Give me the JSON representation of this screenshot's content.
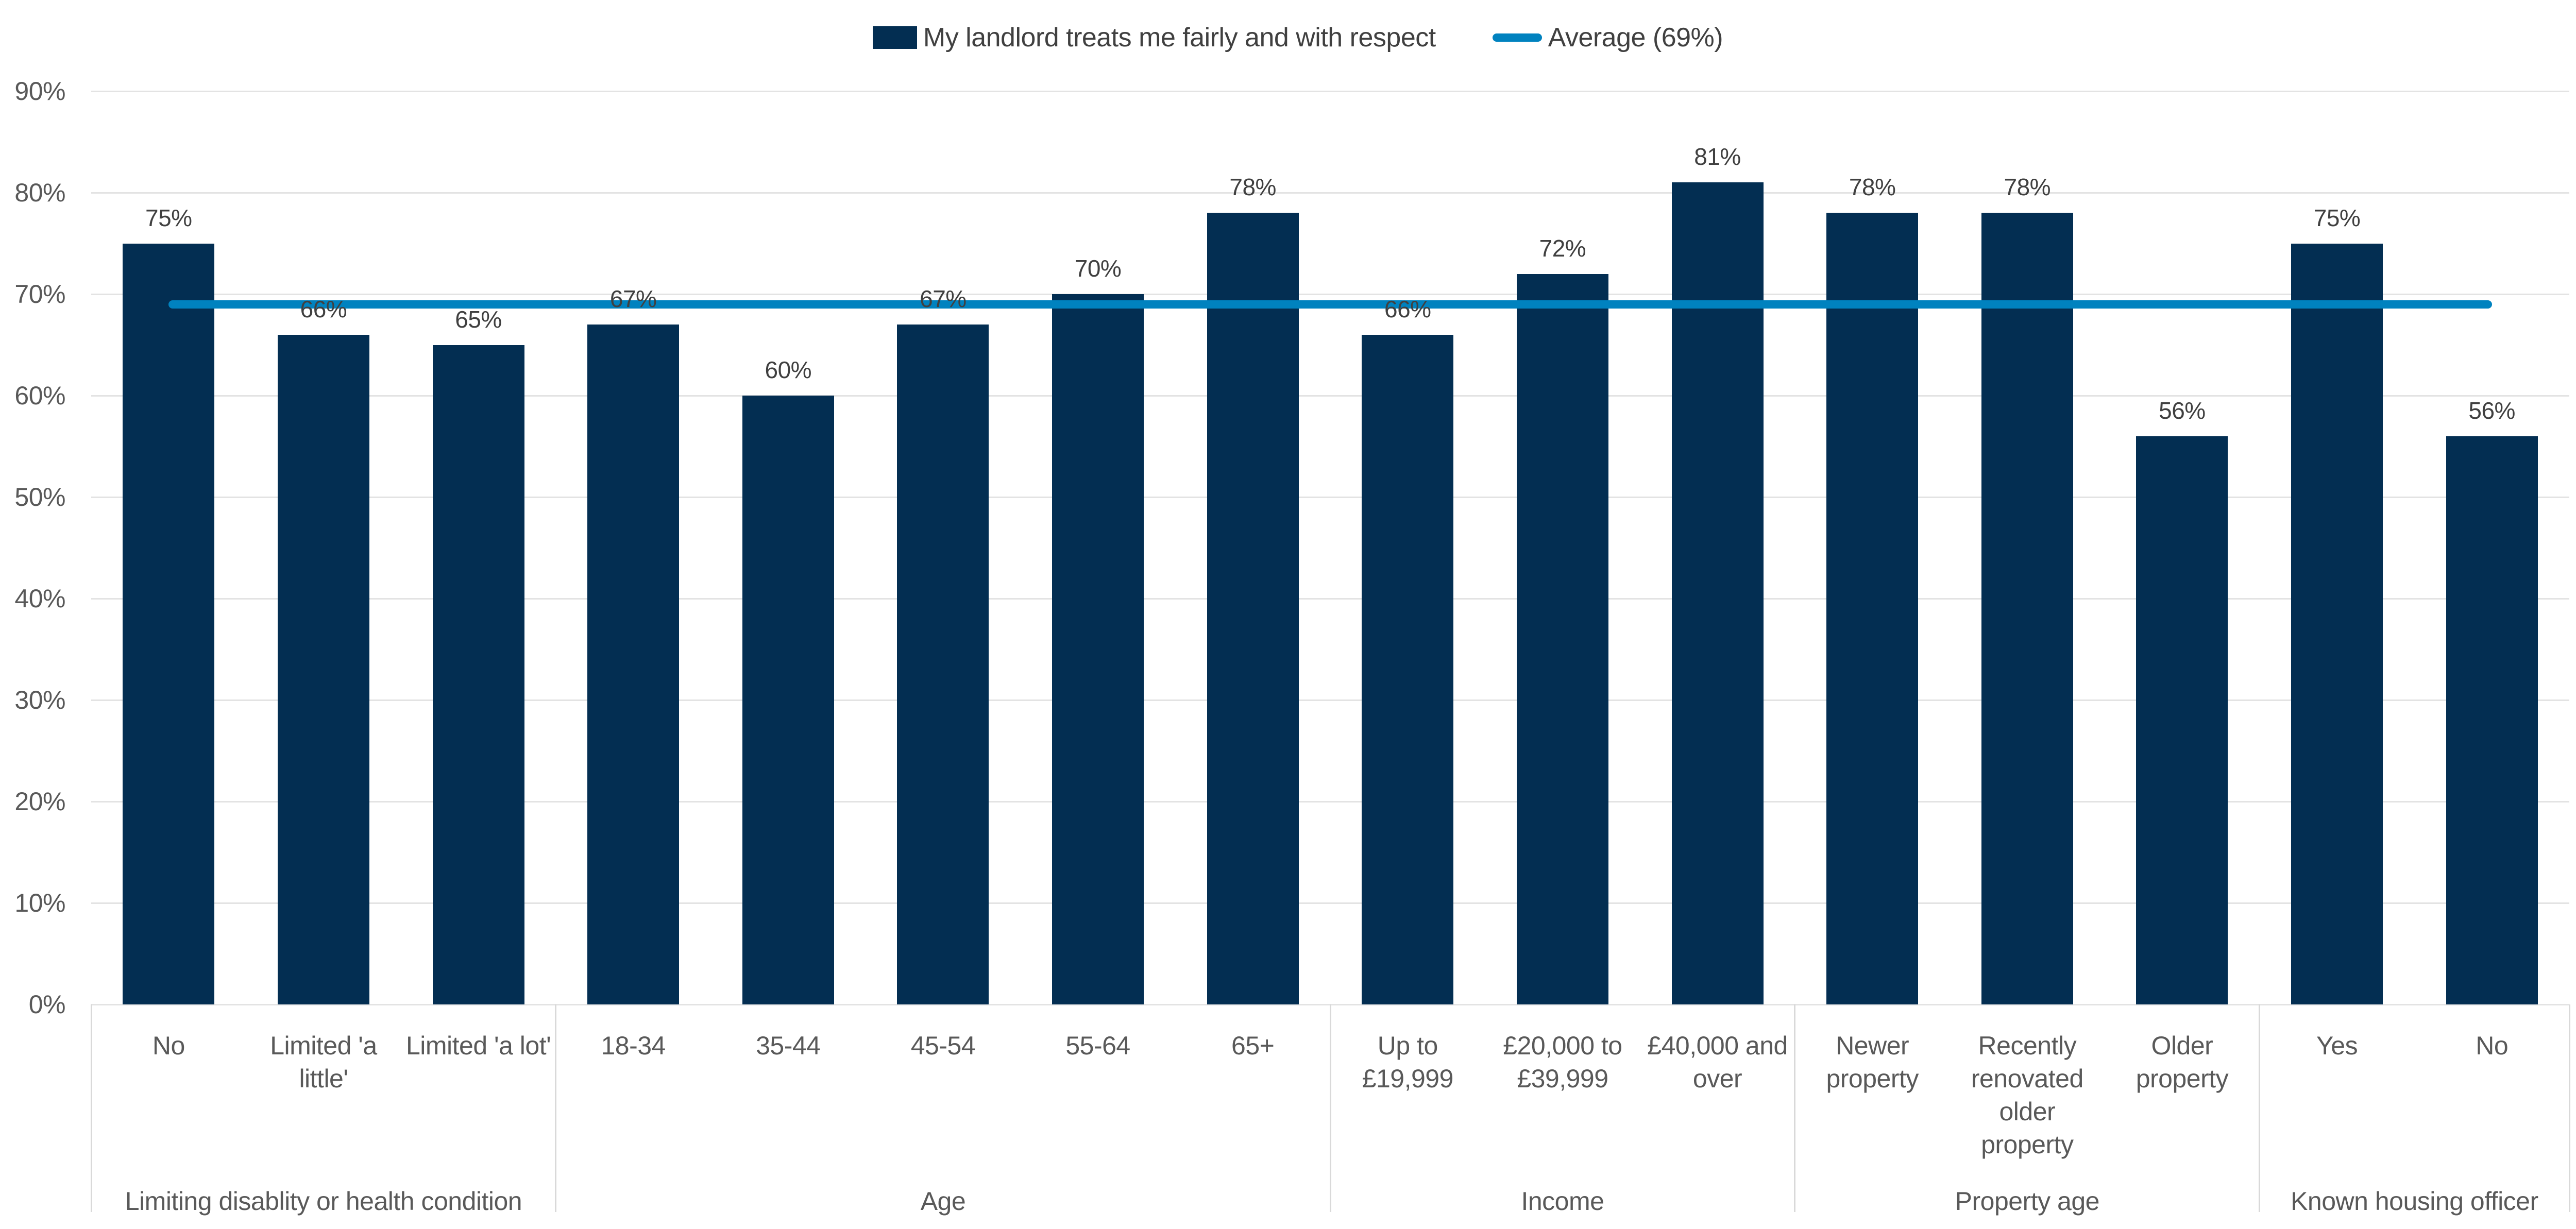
{
  "legend": {
    "series_label": "My landlord treats me fairly and with respect",
    "average_label": "Average (69%)"
  },
  "colors": {
    "bar": "#032E52",
    "average_line": "#0082BF",
    "gridline": "#E3E3E3",
    "separator": "#D9D9D9",
    "value_label_text": "#404040",
    "axis_text": "#595959"
  },
  "chart_data": {
    "type": "bar",
    "title": "",
    "xlabel": "",
    "ylabel": "",
    "ylim": [
      0,
      90
    ],
    "grid": true,
    "legend_position": "top-center",
    "average": 69,
    "data_label_suffix": "%",
    "y_ticks": [
      {
        "value": 0,
        "label": "0%"
      },
      {
        "value": 10,
        "label": "10%"
      },
      {
        "value": 20,
        "label": "20%"
      },
      {
        "value": 30,
        "label": "30%"
      },
      {
        "value": 40,
        "label": "40%"
      },
      {
        "value": 50,
        "label": "50%"
      },
      {
        "value": 60,
        "label": "60%"
      },
      {
        "value": 70,
        "label": "70%"
      },
      {
        "value": 80,
        "label": "80%"
      },
      {
        "value": 90,
        "label": "90%"
      }
    ],
    "groups": [
      {
        "label": "Limiting disablity or health condition",
        "categories": [
          "No",
          "Limited 'a little'",
          "Limited 'a lot'"
        ],
        "values": [
          75,
          66,
          65
        ]
      },
      {
        "label": "Age",
        "categories": [
          "18-34",
          "35-44",
          "45-54",
          "55-64",
          "65+"
        ],
        "values": [
          67,
          60,
          67,
          70,
          78
        ]
      },
      {
        "label": "Income",
        "categories": [
          "Up to £19,999",
          "£20,000 to £39,999",
          "£40,000 and over"
        ],
        "values": [
          66,
          72,
          81
        ]
      },
      {
        "label": "Property age",
        "categories": [
          "Newer property",
          "Recently renovated older property",
          "Older property"
        ],
        "values": [
          78,
          78,
          56
        ]
      },
      {
        "label": "Known housing officer",
        "categories": [
          "Yes",
          "No"
        ],
        "values": [
          75,
          56
        ]
      }
    ]
  }
}
